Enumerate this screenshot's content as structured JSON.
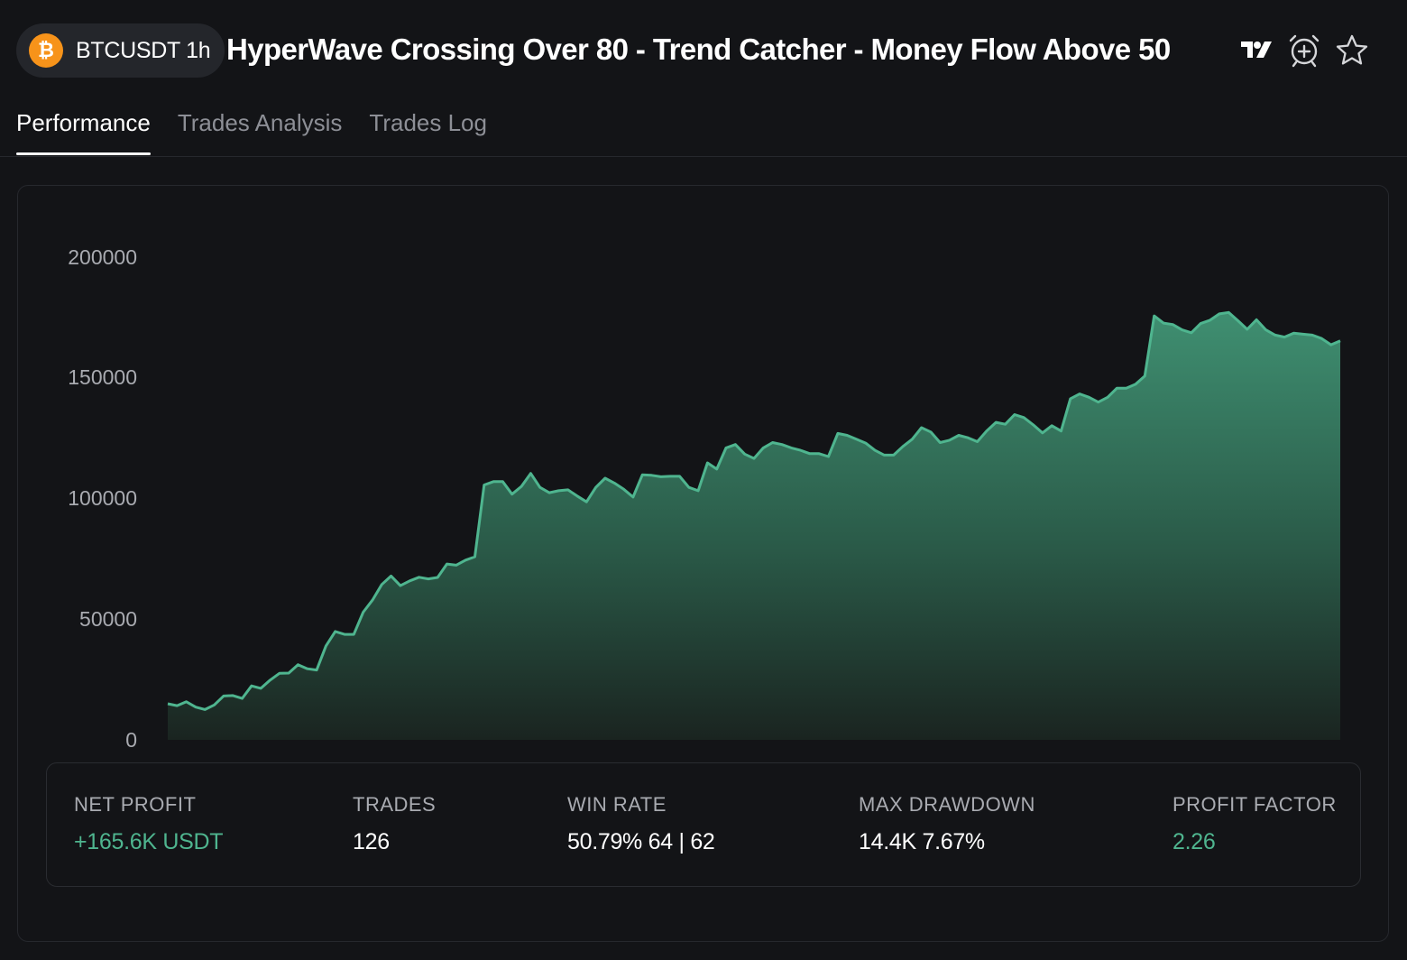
{
  "header": {
    "pair": "BTCUSDT 1h",
    "coin_icon": "bitcoin-icon",
    "title": "HyperWave Crossing Over 80 - Trend Catcher - Money Flow Above 50",
    "icons": [
      "tradingview-logo",
      "add-alarm-icon",
      "star-icon"
    ]
  },
  "tabs": [
    {
      "label": "Performance",
      "active": true
    },
    {
      "label": "Trades Analysis",
      "active": false
    },
    {
      "label": "Trades Log",
      "active": false
    }
  ],
  "chart_data": {
    "type": "area",
    "title": "",
    "xlabel": "",
    "ylabel": "",
    "ylim": [
      0,
      200000
    ],
    "yticks": [
      "200000",
      "150000",
      "100000",
      "50000",
      "0"
    ],
    "grid": false,
    "series": [
      {
        "values": [
          15000,
          14200,
          15800,
          13600,
          12600,
          14500,
          18200,
          18400,
          17200,
          22400,
          21400,
          24800,
          27600,
          27700,
          31200,
          29500,
          29000,
          39000,
          45000,
          43800,
          43800,
          53000,
          58000,
          64500,
          68000,
          64000,
          66000,
          67500,
          66800,
          67400,
          73000,
          72500,
          74600,
          76000,
          105800,
          107200,
          107200,
          102000,
          105200,
          110600,
          104800,
          102600,
          103400,
          103800,
          101200,
          98800,
          104800,
          108600,
          106600,
          104000,
          100800,
          110000,
          109800,
          109200,
          109400,
          109400,
          104800,
          103400,
          115000,
          112400,
          121200,
          122600,
          118600,
          116800,
          121200,
          123400,
          122600,
          121200,
          120200,
          118800,
          118800,
          117600,
          127200,
          126400,
          124800,
          123200,
          120200,
          118200,
          118200,
          121800,
          124800,
          129600,
          127800,
          123400,
          124400,
          126400,
          125400,
          123800,
          128200,
          131800,
          131000,
          135000,
          133800,
          130800,
          127400,
          130400,
          128200,
          141600,
          143600,
          142200,
          140200,
          142200,
          146000,
          146000,
          147600,
          151000,
          176000,
          173000,
          172400,
          170200,
          169000,
          172800,
          174200,
          176800,
          177400,
          174000,
          170400,
          174400,
          170200,
          168000,
          167200,
          168800,
          168400,
          168000,
          166600,
          164000,
          165600
        ]
      }
    ]
  },
  "stats": [
    {
      "label": "NET PROFIT",
      "value": "+165.6K USDT",
      "color": "#4fb58f"
    },
    {
      "label": "TRADES",
      "value": "126",
      "color": "#ffffff"
    },
    {
      "label": "WIN RATE",
      "value": "50.79% 64 | 62",
      "color": "#ffffff"
    },
    {
      "label": "MAX DRAWDOWN",
      "value": "14.4K 7.67%",
      "color": "#ffffff"
    },
    {
      "label": "PROFIT FACTOR",
      "value": "2.26",
      "color": "#4fb58f"
    }
  ],
  "colors": {
    "background": "#131417",
    "accent_green": "#4fb58f",
    "line": "#4fb58f",
    "bitcoin_orange": "#f7931a"
  }
}
